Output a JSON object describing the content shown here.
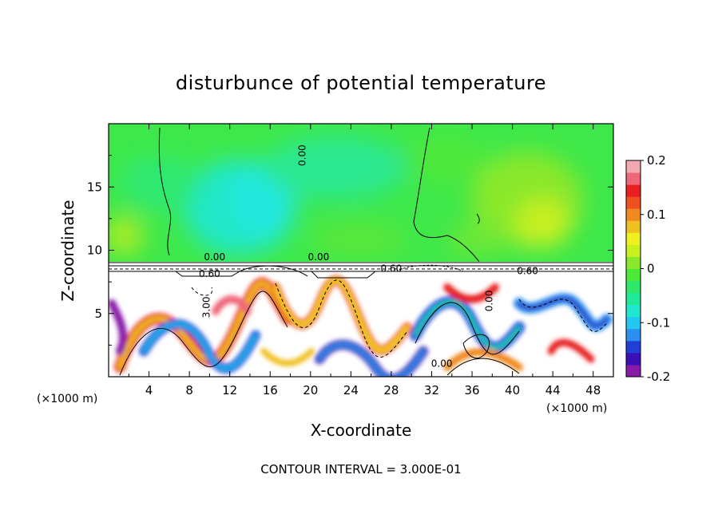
{
  "chart_data": {
    "type": "heatmap",
    "title": "disturbunce of potential temperature",
    "xlabel": "X-coordinate",
    "ylabel": "Z-coordinate",
    "x_unit_label": "(×1000 m)",
    "z_unit_label": "(×1000 m)",
    "xlim": [
      0,
      50
    ],
    "ylim": [
      0,
      20
    ],
    "xticks": [
      "4",
      "8",
      "12",
      "16",
      "20",
      "24",
      "28",
      "32",
      "36",
      "40",
      "44",
      "48"
    ],
    "xtick_values": [
      4,
      8,
      12,
      16,
      20,
      24,
      28,
      32,
      36,
      40,
      44,
      48
    ],
    "yticks": [
      "5",
      "10",
      "15"
    ],
    "ytick_values": [
      5,
      10,
      15
    ],
    "colorbar": {
      "min": -0.2,
      "max": 0.2,
      "tick_labels": [
        "0.2",
        "0.1",
        "0",
        "-0.1",
        "-0.2"
      ],
      "tick_values": [
        0.2,
        0.1,
        0,
        -0.1,
        -0.2
      ],
      "colors": [
        "#8a1aa8",
        "#3a0fb8",
        "#1f3fd8",
        "#2a8ff0",
        "#22c8f0",
        "#20e8d0",
        "#22e89a",
        "#2ee86a",
        "#4ee83a",
        "#8ae82a",
        "#c8f020",
        "#f0f020",
        "#f0c020",
        "#f08a20",
        "#f05020",
        "#e82020",
        "#f06878",
        "#f4a8b0"
      ]
    },
    "contour_labels": [
      {
        "text": "0.00",
        "x": 19.5,
        "z": 17.5,
        "angle": -90
      },
      {
        "text": "0.00",
        "x": 10.5,
        "z": 9.2,
        "angle": 0
      },
      {
        "text": "0.00",
        "x": 20.8,
        "z": 9.2,
        "angle": 0
      },
      {
        "text": "0.60",
        "x": 10.0,
        "z": 7.9,
        "angle": 0
      },
      {
        "text": "0.60",
        "x": 28.0,
        "z": 8.3,
        "angle": 0
      },
      {
        "text": "0.60",
        "x": 41.5,
        "z": 8.1,
        "angle": 0
      },
      {
        "text": "3.00",
        "x": 10.0,
        "z": 5.5,
        "angle": -90
      },
      {
        "text": "0.00",
        "x": 38.0,
        "z": 6.0,
        "angle": -90
      },
      {
        "text": "0.00",
        "x": 33.0,
        "z": 0.8,
        "angle": 0
      }
    ],
    "footer": "CONTOUR INTERVAL = 3.000E-01"
  }
}
